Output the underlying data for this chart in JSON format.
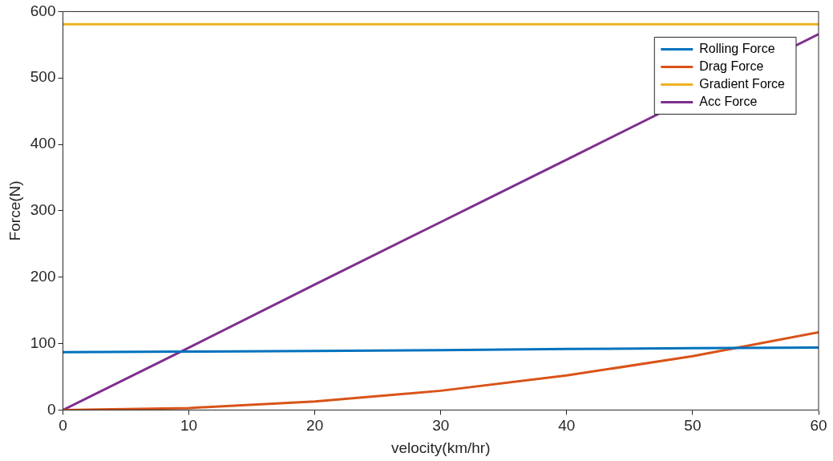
{
  "chart_data": {
    "type": "line",
    "xlabel": "velocity(km/hr)",
    "ylabel": "Force(N)",
    "x": [
      0,
      10,
      20,
      30,
      40,
      50,
      60
    ],
    "series": [
      {
        "name": "Rolling Force",
        "color": "#0072bd",
        "values": [
          87,
          88,
          89,
          90,
          92,
          93,
          94
        ]
      },
      {
        "name": "Drag Force",
        "color": "#d95319",
        "values": [
          0,
          3,
          13,
          29,
          52,
          81,
          117
        ]
      },
      {
        "name": "Gradient Force",
        "color": "#edb120",
        "values": [
          581,
          581,
          581,
          581,
          581,
          581,
          581
        ]
      },
      {
        "name": "Acc Force",
        "color": "#7e2f8e",
        "x": [
          0,
          10,
          20,
          30,
          40,
          60
        ],
        "values": [
          0,
          94,
          189,
          283,
          377,
          566
        ]
      }
    ],
    "xlim": [
      0,
      60
    ],
    "xticks": [
      0,
      10,
      20,
      30,
      40,
      50,
      60
    ],
    "ylim": [
      0,
      600
    ],
    "yticks": [
      0,
      100,
      200,
      300,
      400,
      500,
      600
    ],
    "grid": false,
    "legend": "top right",
    "marker": "none",
    "line_style": "solid"
  }
}
